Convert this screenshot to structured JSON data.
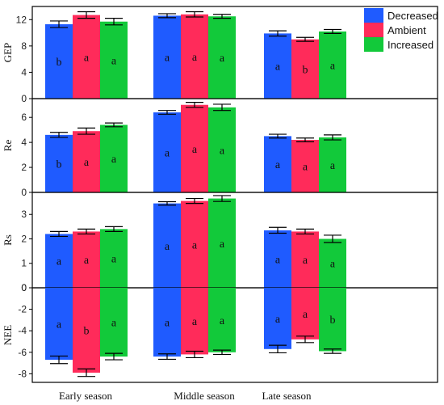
{
  "chart_data": {
    "type": "bar",
    "categories": [
      "Early season",
      "Middle season",
      "Late season"
    ],
    "legend": [
      "Decreased",
      "Ambient",
      "Increased"
    ],
    "legend_position": "top-right",
    "colors": {
      "Decreased": "#1f5bff",
      "Ambient": "#ff2b5a",
      "Increased": "#12c93a"
    },
    "panels": [
      {
        "ylabel": "GEP",
        "ylim": [
          0,
          14
        ],
        "yticks": [
          0,
          4,
          8,
          12
        ],
        "series": [
          {
            "name": "Decreased",
            "values": [
              11.3,
              12.6,
              9.9
            ],
            "errors": [
              0.5,
              0.3,
              0.4
            ],
            "letters": [
              "b",
              "a",
              "a"
            ]
          },
          {
            "name": "Ambient",
            "values": [
              12.7,
              12.8,
              9.0
            ],
            "errors": [
              0.5,
              0.4,
              0.3
            ],
            "letters": [
              "a",
              "a",
              "b"
            ]
          },
          {
            "name": "Increased",
            "values": [
              11.7,
              12.5,
              10.2
            ],
            "errors": [
              0.5,
              0.3,
              0.3
            ],
            "letters": [
              "a",
              "a",
              "a"
            ]
          }
        ]
      },
      {
        "ylabel": "Re",
        "ylim": [
          0,
          7.5
        ],
        "yticks": [
          0,
          2,
          4,
          6
        ],
        "series": [
          {
            "name": "Decreased",
            "values": [
              4.6,
              6.4,
              4.5
            ],
            "errors": [
              0.2,
              0.15,
              0.15
            ],
            "letters": [
              "b",
              "a",
              "a"
            ]
          },
          {
            "name": "Ambient",
            "values": [
              4.9,
              7.0,
              4.2
            ],
            "errors": [
              0.25,
              0.2,
              0.15
            ],
            "letters": [
              "a",
              "a",
              "a"
            ]
          },
          {
            "name": "Increased",
            "values": [
              5.4,
              6.8,
              4.4
            ],
            "errors": [
              0.15,
              0.25,
              0.2
            ],
            "letters": [
              "a",
              "a",
              "a"
            ]
          }
        ]
      },
      {
        "ylabel": "Rs",
        "ylim": [
          0,
          3.9
        ],
        "yticks": [
          0,
          1,
          2,
          3
        ],
        "series": [
          {
            "name": "Decreased",
            "values": [
              2.2,
              3.45,
              2.35
            ],
            "errors": [
              0.1,
              0.07,
              0.12
            ],
            "letters": [
              "a",
              "a",
              "a"
            ]
          },
          {
            "name": "Ambient",
            "values": [
              2.3,
              3.55,
              2.3
            ],
            "errors": [
              0.1,
              0.1,
              0.1
            ],
            "letters": [
              "a",
              "a",
              "a"
            ]
          },
          {
            "name": "Increased",
            "values": [
              2.4,
              3.65,
              2.0
            ],
            "errors": [
              0.1,
              0.12,
              0.15
            ],
            "letters": [
              "a",
              "a",
              "a"
            ]
          }
        ]
      },
      {
        "ylabel": "NEE",
        "ylim": [
          -8.8,
          0
        ],
        "yticks": [
          0,
          -2,
          -4,
          -6,
          -8
        ],
        "series": [
          {
            "name": "Decreased",
            "values": [
              -6.7,
              -6.4,
              -5.7
            ],
            "errors": [
              0.35,
              0.25,
              0.35
            ],
            "letters": [
              "a",
              "a",
              "a"
            ]
          },
          {
            "name": "Ambient",
            "values": [
              -7.9,
              -6.2,
              -4.8
            ],
            "errors": [
              0.35,
              0.3,
              0.3
            ],
            "letters": [
              "b",
              "a",
              "a"
            ]
          },
          {
            "name": "Increased",
            "values": [
              -6.4,
              -6.0,
              -5.9
            ],
            "errors": [
              0.3,
              0.2,
              0.2
            ],
            "letters": [
              "a",
              "a",
              "b"
            ]
          }
        ]
      }
    ]
  }
}
